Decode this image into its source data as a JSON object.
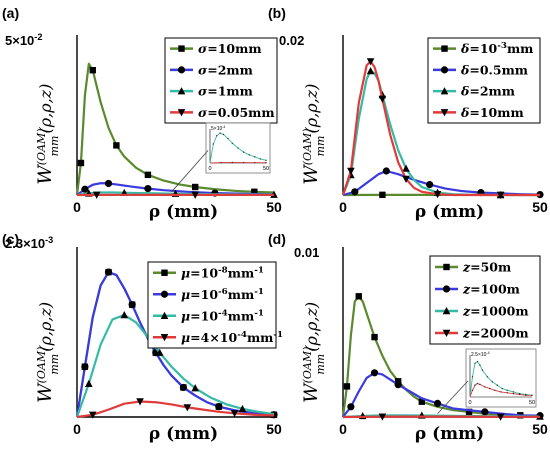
{
  "chart_data": [
    {
      "type": "line",
      "panel_label": "(a)",
      "ymax_label": "5×10-2",
      "xlabel": "ρ (mm)",
      "ylabel": "W(OAM)mm(ρ,ρ,z)",
      "xlim": [
        0,
        50
      ],
      "ylim": [
        0,
        0.05
      ],
      "x_ticks": [
        "0",
        "50"
      ],
      "legend": "top-right",
      "series": [
        {
          "name": "σ=10mm",
          "color": "#5a8a2e",
          "marker": "square",
          "x": [
            0,
            1,
            2,
            3,
            4,
            6,
            8,
            10,
            12,
            15,
            18,
            22,
            26,
            30,
            35,
            40,
            45,
            50
          ],
          "y": [
            0,
            0.01,
            0.031,
            0.041,
            0.039,
            0.029,
            0.021,
            0.0155,
            0.012,
            0.0085,
            0.0063,
            0.0045,
            0.0033,
            0.0025,
            0.0018,
            0.0013,
            0.001,
            0.0008
          ]
        },
        {
          "name": "σ=2mm",
          "color": "#3a3ae0",
          "marker": "circle",
          "x": [
            0,
            2,
            4,
            6,
            8,
            10,
            14,
            18,
            22,
            28,
            35,
            42,
            50
          ],
          "y": [
            0,
            0.0018,
            0.0032,
            0.0037,
            0.0036,
            0.0033,
            0.0026,
            0.002,
            0.0015,
            0.001,
            0.0006,
            0.0004,
            0.0002
          ]
        },
        {
          "name": "σ=1mm",
          "color": "#35bba5",
          "marker": "triangle-up",
          "x": [
            0,
            3,
            6,
            9,
            12,
            16,
            20,
            25,
            30,
            40,
            50
          ],
          "y": [
            0,
            0.0005,
            0.0008,
            0.0008,
            0.0007,
            0.0006,
            0.0005,
            0.0004,
            0.0003,
            0.00015,
            0.0001
          ]
        },
        {
          "name": "σ=0.05mm",
          "color": "#e03a3a",
          "marker": "triangle-down",
          "x": [
            0,
            5,
            10,
            20,
            30,
            40,
            50
          ],
          "y": [
            0,
            5e-05,
            6e-05,
            5e-05,
            4e-05,
            3e-05,
            2e-05
          ]
        }
      ],
      "inset": {
        "ymax_label": "5×10-4",
        "x_ticks": [
          "0",
          "50"
        ],
        "ylim": [
          0,
          0.0005
        ],
        "series": [
          {
            "color": "#35bba5",
            "x": [
              0,
              3,
              6,
              9,
              12,
              16,
              20,
              25,
              30,
              35,
              40,
              45,
              50
            ],
            "y": [
              0,
              0.00028,
              0.0004,
              0.00044,
              0.00042,
              0.00036,
              0.00029,
              0.00022,
              0.00016,
              0.00012,
              9e-05,
              6e-05,
              4e-05
            ]
          },
          {
            "color": "#e03a3a",
            "x": [
              0,
              10,
              20,
              30,
              40,
              50
            ],
            "y": [
              0,
              6e-06,
              8e-06,
              7e-06,
              5e-06,
              4e-06
            ]
          }
        ]
      }
    },
    {
      "type": "line",
      "panel_label": "(b)",
      "ymax_label": "0.02",
      "xlabel": "ρ (mm)",
      "ylabel": "W(OAM)mm(ρ,ρ,z)",
      "xlim": [
        0,
        50
      ],
      "ylim": [
        0,
        0.02
      ],
      "x_ticks": [
        "0",
        "50"
      ],
      "legend": "top-right",
      "series": [
        {
          "name": "δ=10-3mm",
          "color": "#5a8a2e",
          "marker": "square",
          "x": [
            0,
            10,
            20,
            30,
            40,
            50
          ],
          "y": [
            0,
            2e-05,
            2e-05,
            1e-05,
            1e-05,
            0
          ]
        },
        {
          "name": "δ=0.5mm",
          "color": "#3a3ae0",
          "marker": "circle",
          "x": [
            0,
            3,
            6,
            9,
            11,
            14,
            18,
            22,
            26,
            30,
            35,
            40,
            45,
            50
          ],
          "y": [
            0,
            0.0004,
            0.0015,
            0.0026,
            0.003,
            0.0026,
            0.0019,
            0.0013,
            0.0008,
            0.0005,
            0.0003,
            0.0002,
            0.0001,
            5e-05
          ]
        },
        {
          "name": "δ=2mm",
          "color": "#35bba5",
          "marker": "triangle-up",
          "x": [
            0,
            2,
            4,
            6,
            7,
            8,
            9,
            10,
            12,
            14,
            16,
            18,
            20,
            24,
            28,
            32,
            40,
            50
          ],
          "y": [
            0,
            0.0025,
            0.0095,
            0.0145,
            0.0155,
            0.0152,
            0.0143,
            0.0125,
            0.0088,
            0.0056,
            0.0033,
            0.0019,
            0.001,
            0.0003,
            0.0001,
            3e-05,
            0,
            0
          ]
        },
        {
          "name": "δ=10mm",
          "color": "#e03a3a",
          "marker": "triangle-down",
          "x": [
            0,
            2,
            4,
            6,
            7,
            8,
            9,
            10,
            12,
            14,
            16,
            18,
            20,
            24,
            28,
            32,
            40,
            50
          ],
          "y": [
            0,
            0.003,
            0.0115,
            0.0162,
            0.0167,
            0.016,
            0.0143,
            0.012,
            0.0075,
            0.0041,
            0.002,
            0.0009,
            0.0004,
            0.0001,
            0,
            0,
            0,
            0
          ]
        }
      ]
    },
    {
      "type": "line",
      "panel_label": "(c)",
      "ymax_label": "2.3×10-3",
      "xlabel": "ρ (mm)",
      "ylabel": "W(OAM)mm(ρ,ρ,z)",
      "xlim": [
        0,
        50
      ],
      "ylim": [
        0,
        0.0023
      ],
      "x_ticks": [
        "0",
        "50"
      ],
      "legend": "top-right",
      "series": [
        {
          "name": "μ=10-8mm-1",
          "color": "#5a8a2e",
          "marker": "square",
          "x": [
            0,
            2,
            4,
            6,
            8,
            10,
            12,
            14,
            16,
            18,
            20,
            22,
            24,
            27,
            30,
            33,
            36,
            40,
            45,
            50
          ],
          "y": [
            0,
            0.00068,
            0.00135,
            0.00178,
            0.00196,
            0.00192,
            0.00174,
            0.00152,
            0.00128,
            0.00106,
            0.00087,
            0.0007,
            0.00056,
            0.0004,
            0.00029,
            0.0002,
            0.00014,
            9e-05,
            5e-05,
            3e-05
          ]
        },
        {
          "name": "μ=10-6mm-1",
          "color": "#3a3ae0",
          "marker": "circle",
          "x": [
            0,
            2,
            4,
            6,
            8,
            10,
            12,
            14,
            16,
            18,
            20,
            22,
            24,
            27,
            30,
            33,
            36,
            40,
            45,
            50
          ],
          "y": [
            0,
            0.00068,
            0.00135,
            0.00178,
            0.00196,
            0.00192,
            0.00174,
            0.00152,
            0.00128,
            0.00106,
            0.00087,
            0.0007,
            0.00056,
            0.0004,
            0.00029,
            0.0002,
            0.00014,
            9e-05,
            5e-05,
            3e-05
          ]
        },
        {
          "name": "μ=10-4mm-1",
          "color": "#35bba5",
          "marker": "triangle-up",
          "x": [
            0,
            3,
            6,
            9,
            12,
            15,
            18,
            21,
            24,
            27,
            30,
            34,
            38,
            42,
            46,
            50
          ],
          "y": [
            0,
            0.00045,
            0.00098,
            0.00132,
            0.00138,
            0.00128,
            0.00108,
            0.00087,
            0.00068,
            0.00052,
            0.00039,
            0.00026,
            0.00017,
            0.00011,
            7e-05,
            4e-05
          ]
        },
        {
          "name": "μ=4×10-4mm-1",
          "color": "#e03a3a",
          "marker": "triangle-down",
          "x": [
            0,
            4,
            8,
            12,
            16,
            20,
            24,
            28,
            32,
            36,
            40,
            45,
            50
          ],
          "y": [
            0,
            3e-05,
            0.0001,
            0.00018,
            0.00021,
            0.0002,
            0.00017,
            0.00013,
            0.0001,
            7e-05,
            5e-05,
            3e-05,
            2e-05
          ]
        }
      ]
    },
    {
      "type": "line",
      "panel_label": "(d)",
      "ymax_label": "0.01",
      "xlabel": "ρ (mm)",
      "ylabel": "W(OAM)mm(ρ,ρ,z)",
      "xlim": [
        0,
        50
      ],
      "ylim": [
        0,
        0.01
      ],
      "x_ticks": [
        "0",
        "50"
      ],
      "legend": "top-right",
      "series": [
        {
          "name": "z=50m",
          "color": "#5a8a2e",
          "marker": "square",
          "x": [
            0,
            1,
            2,
            3,
            4,
            5,
            6,
            8,
            10,
            12,
            14,
            16,
            18,
            20,
            24,
            28,
            32,
            36,
            40,
            45,
            50
          ],
          "y": [
            0,
            0.0018,
            0.0048,
            0.0068,
            0.0071,
            0.0068,
            0.0061,
            0.0047,
            0.0036,
            0.0027,
            0.0021,
            0.0016,
            0.0012,
            0.0009,
            0.0006,
            0.0004,
            0.0003,
            0.0002,
            0.00015,
            0.0001,
            6e-05
          ]
        },
        {
          "name": "z=100m",
          "color": "#3a3ae0",
          "marker": "circle",
          "x": [
            0,
            2,
            4,
            6,
            8,
            10,
            12,
            14,
            17,
            20,
            24,
            28,
            32,
            36,
            40,
            45,
            50
          ],
          "y": [
            0,
            0.0006,
            0.0015,
            0.0023,
            0.0026,
            0.0025,
            0.0022,
            0.0019,
            0.0015,
            0.0011,
            0.0008,
            0.0005,
            0.0004,
            0.0003,
            0.0002,
            0.0001,
            8e-05
          ]
        },
        {
          "name": "z=1000m",
          "color": "#35bba5",
          "marker": "triangle-up",
          "x": [
            0,
            5,
            10,
            15,
            20,
            30,
            40,
            50
          ],
          "y": [
            0,
            6e-05,
            0.0001,
            0.0001,
            9e-05,
            6e-05,
            4e-05,
            3e-05
          ]
        },
        {
          "name": "z=2000m",
          "color": "#e03a3a",
          "marker": "triangle-down",
          "x": [
            0,
            10,
            20,
            30,
            40,
            50
          ],
          "y": [
            0,
            2e-05,
            2e-05,
            2e-05,
            1e-05,
            1e-05
          ]
        }
      ],
      "inset": {
        "ymax_label": "2.5×10-4",
        "x_ticks": [
          "0",
          "50"
        ],
        "ylim": [
          0,
          0.00025
        ],
        "series": [
          {
            "color": "#35bba5",
            "x": [
              0,
              2,
              4,
              6,
              8,
              10,
              14,
              18,
              22,
              26,
              30,
              35,
              40,
              45,
              50
            ],
            "y": [
              0,
              0.00012,
              0.0002,
              0.00021,
              0.00019,
              0.00016,
              0.00012,
              9e-05,
              7e-05,
              5e-05,
              4e-05,
              3e-05,
              2e-05,
              1.5e-05,
              1e-05
            ]
          },
          {
            "color": "#e03a3a",
            "x": [
              0,
              2,
              4,
              6,
              8,
              12,
              16,
              20,
              25,
              30,
              35,
              40,
              45,
              50
            ],
            "y": [
              0,
              4e-05,
              7e-05,
              8e-05,
              7.5e-05,
              6e-05,
              5e-05,
              4e-05,
              3e-05,
              2.5e-05,
              2e-05,
              1.5e-05,
              1e-05,
              1e-05
            ]
          }
        ]
      }
    }
  ]
}
